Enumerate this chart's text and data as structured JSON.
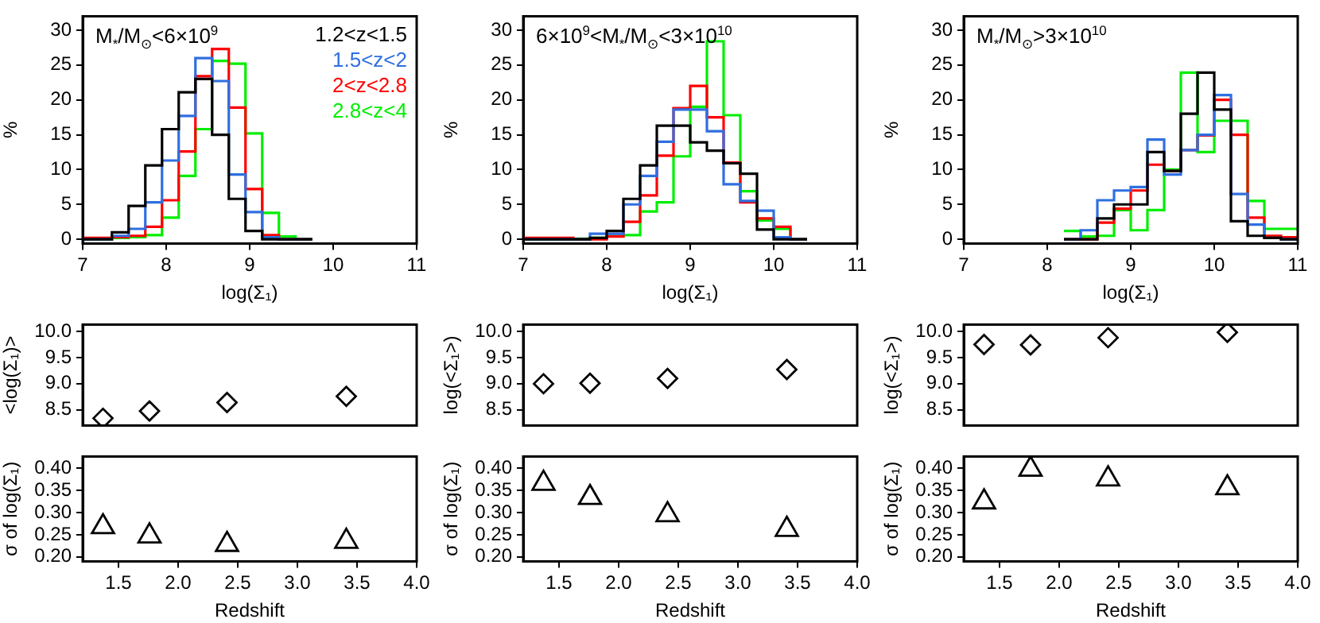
{
  "chart_data": [
    {
      "type": "histogram",
      "title": "M$_{*}$/M$_{⊙}$<6×10$^{9}$",
      "xlabel": "log(Σ₁)",
      "ylabel": "%",
      "bins": [
        6.95,
        7.15,
        7.35,
        7.55,
        7.75,
        7.95,
        8.15,
        8.35,
        8.55,
        8.75,
        8.95,
        9.15,
        9.35,
        9.55,
        9.75
      ],
      "xlim": [
        7,
        11
      ],
      "xticks": [
        7,
        8,
        9,
        10,
        11
      ],
      "ylim": [
        -0.6,
        32
      ],
      "yticks": [
        0,
        5,
        10,
        15,
        20,
        25,
        30
      ],
      "series": [
        {
          "name": "1.2<z<1.5",
          "color": "#000000",
          "values": [
            0,
            0,
            1.0,
            4.8,
            10.6,
            15.8,
            21.1,
            23.0,
            15.0,
            5.8,
            1.2,
            0,
            0,
            0
          ]
        },
        {
          "name": "1.5<z<2",
          "color": "#2f6fe0",
          "values": [
            0,
            0,
            0.5,
            1.5,
            5.3,
            11.3,
            17.7,
            26.0,
            22.7,
            9.3,
            3.9,
            0.3,
            0,
            0
          ]
        },
        {
          "name": "2<z<2.8",
          "color": "#ff0000",
          "values": [
            0.2,
            0.2,
            0.3,
            0.5,
            1.8,
            5.6,
            12.6,
            23.4,
            27.3,
            18.9,
            7.2,
            0.6,
            0,
            0
          ]
        },
        {
          "name": "2.8<z<4",
          "color": "#00ee00",
          "values": [
            0,
            0,
            0.2,
            0.3,
            0.6,
            3.1,
            9.1,
            15.8,
            25.6,
            25.2,
            15.2,
            3.8,
            0.4,
            0
          ]
        }
      ]
    },
    {
      "type": "histogram",
      "title": "6×10$^{9}$<M$_{*}$/M$_{⊙}$<3×10$^{10}$",
      "xlabel": "log(Σ₁)",
      "ylabel": "%",
      "bins": [
        7.0,
        7.2,
        7.4,
        7.6,
        7.8,
        8.0,
        8.2,
        8.4,
        8.6,
        8.8,
        9.0,
        9.2,
        9.4,
        9.6,
        9.8,
        10.0,
        10.2,
        10.4
      ],
      "xlim": [
        7,
        11
      ],
      "xticks": [
        7,
        8,
        9,
        10,
        11
      ],
      "ylim": [
        -0.6,
        32
      ],
      "yticks": [
        0,
        5,
        10,
        15,
        20,
        25,
        30
      ],
      "series": [
        {
          "color": "#000000",
          "values": [
            0,
            0,
            0,
            0,
            0.2,
            1.2,
            5.8,
            10.6,
            16.3,
            16.3,
            13.9,
            12.7,
            10.9,
            9.4,
            1.4,
            0,
            0
          ]
        },
        {
          "color": "#2f6fe0",
          "values": [
            0,
            0,
            0,
            0,
            0.8,
            0.8,
            5.0,
            9.1,
            14.0,
            18.6,
            18.6,
            15.5,
            7.9,
            5.5,
            4.1,
            0.3,
            0
          ]
        },
        {
          "color": "#ff0000",
          "values": [
            0.2,
            0.2,
            0.2,
            0,
            0,
            0.4,
            2.5,
            6.3,
            12.0,
            18.8,
            22.0,
            17.5,
            11.0,
            5.3,
            3.0,
            1.8,
            0
          ]
        },
        {
          "color": "#00ee00",
          "values": [
            0,
            0,
            0,
            0.1,
            0.2,
            0.5,
            0.6,
            4.0,
            5.3,
            11.9,
            19.0,
            28.4,
            17.8,
            6.9,
            2.7,
            1.5,
            0
          ]
        }
      ]
    },
    {
      "type": "histogram",
      "title": "M$_{*}$/M$_{⊙}$>3×10$^{10}$",
      "xlabel": "log(Σ₁)",
      "ylabel": "%",
      "bins": [
        8.2,
        8.4,
        8.6,
        8.8,
        9.0,
        9.2,
        9.4,
        9.6,
        9.8,
        10.0,
        10.2,
        10.4,
        10.6,
        10.8,
        11.0
      ],
      "xlim": [
        7,
        11
      ],
      "xticks": [
        7,
        8,
        9,
        10,
        11
      ],
      "ylim": [
        -0.6,
        32
      ],
      "yticks": [
        0,
        5,
        10,
        15,
        20,
        25,
        30
      ],
      "series": [
        {
          "color": "#000000",
          "values": [
            0,
            0,
            3.0,
            5.0,
            5.0,
            12.5,
            9.8,
            18.0,
            23.9,
            18.6,
            2.6,
            0.5,
            0.2,
            0
          ]
        },
        {
          "color": "#2f6fe0",
          "values": [
            0,
            1.3,
            5.6,
            7.0,
            7.5,
            14.3,
            9.3,
            12.8,
            15.0,
            20.7,
            6.5,
            2.1,
            0.2,
            0
          ]
        },
        {
          "color": "#ff0000",
          "values": [
            0,
            0,
            2.4,
            4.4,
            7.0,
            10.7,
            9.8,
            12.8,
            14.9,
            20.0,
            15.0,
            3.1,
            0.5,
            0.3
          ]
        },
        {
          "color": "#00ee00",
          "values": [
            1.2,
            0.4,
            0.5,
            4.2,
            1.3,
            4.2,
            10.0,
            23.9,
            12.5,
            17.0,
            17.0,
            5.5,
            1.5,
            1.5
          ]
        }
      ]
    },
    {
      "type": "scatter",
      "ylabel": "<log(Σ₁)>",
      "marker": "diamond",
      "tick_labels": "y",
      "x": [
        1.37,
        1.76,
        2.41,
        3.41
      ],
      "xlim": [
        1.2,
        4.0
      ],
      "ylim": [
        8.2,
        10.13
      ],
      "yticks": [
        8.5,
        {
          "value": 9,
          "label": "9.0"
        },
        9.5,
        {
          "value": 10,
          "label": "10.0"
        }
      ],
      "series": [
        {
          "color": "#000000",
          "values": [
            8.34,
            8.48,
            8.64,
            8.76
          ]
        }
      ]
    },
    {
      "type": "scatter",
      "xlabel": "Redshift",
      "ylabel": "σ of log(Σ₁)",
      "marker": "triangle",
      "x": [
        1.37,
        1.76,
        2.41,
        3.41
      ],
      "xlim": [
        1.2,
        4.0
      ],
      "xticks": [
        1.5,
        {
          "value": 2,
          "label": "2.0"
        },
        2.5,
        {
          "value": 3,
          "label": "3.0"
        },
        3.5,
        {
          "value": 4,
          "label": "4.0"
        }
      ],
      "ylim": [
        0.19,
        0.427
      ],
      "yticks": [
        {
          "value": 0.2,
          "label": "0.20"
        },
        0.25,
        {
          "value": 0.3,
          "label": "0.30"
        },
        0.35,
        {
          "value": 0.4,
          "label": "0.40"
        }
      ],
      "series": [
        {
          "color": "#000000",
          "values": [
            0.268,
            0.247,
            0.228,
            0.235
          ]
        }
      ]
    },
    {
      "type": "scatter",
      "ylabel": "log(<Σ₁>)",
      "marker": "diamond",
      "tick_labels": "y",
      "x": [
        1.37,
        1.76,
        2.41,
        3.41
      ],
      "xlim": [
        1.2,
        4.0
      ],
      "ylim": [
        8.2,
        10.13
      ],
      "yticks": [
        8.5,
        {
          "value": 9,
          "label": "9.0"
        },
        9.5,
        {
          "value": 10,
          "label": "10.0"
        }
      ],
      "series": [
        {
          "color": "#000000",
          "values": [
            9.0,
            9.01,
            9.1,
            9.27
          ]
        }
      ]
    },
    {
      "type": "scatter",
      "xlabel": "Redshift",
      "ylabel": "σ of log(Σ₁)",
      "marker": "triangle",
      "x": [
        1.37,
        1.76,
        2.41,
        3.41
      ],
      "xlim": [
        1.2,
        4.0
      ],
      "xticks": [
        1.5,
        {
          "value": 2,
          "label": "2.0"
        },
        2.5,
        {
          "value": 3,
          "label": "3.0"
        },
        3.5,
        {
          "value": 4,
          "label": "4.0"
        }
      ],
      "ylim": [
        0.19,
        0.427
      ],
      "yticks": [
        {
          "value": 0.2,
          "label": "0.20"
        },
        0.25,
        {
          "value": 0.3,
          "label": "0.30"
        },
        0.35,
        {
          "value": 0.4,
          "label": "0.40"
        }
      ],
      "series": [
        {
          "color": "#000000",
          "values": [
            0.366,
            0.334,
            0.295,
            0.262
          ]
        }
      ]
    },
    {
      "type": "scatter",
      "ylabel": "log(<Σ₁>)",
      "marker": "diamond",
      "tick_labels": "y",
      "x": [
        1.37,
        1.76,
        2.41,
        3.41
      ],
      "xlim": [
        1.2,
        4.0
      ],
      "ylim": [
        8.2,
        10.13
      ],
      "yticks": [
        8.5,
        {
          "value": 9,
          "label": "9.0"
        },
        9.5,
        {
          "value": 10,
          "label": "10.0"
        }
      ],
      "series": [
        {
          "color": "#000000",
          "values": [
            9.75,
            9.74,
            9.88,
            9.98
          ]
        }
      ]
    },
    {
      "type": "scatter",
      "xlabel": "Redshift",
      "ylabel": "σ of log(Σ₁)",
      "marker": "triangle",
      "x": [
        1.37,
        1.76,
        2.41,
        3.41
      ],
      "xlim": [
        1.2,
        4.0
      ],
      "xticks": [
        1.5,
        {
          "value": 2,
          "label": "2.0"
        },
        2.5,
        {
          "value": 3,
          "label": "3.0"
        },
        3.5,
        {
          "value": 4,
          "label": "4.0"
        }
      ],
      "ylim": [
        0.19,
        0.427
      ],
      "yticks": [
        {
          "value": 0.2,
          "label": "0.20"
        },
        0.25,
        {
          "value": 0.3,
          "label": "0.30"
        },
        0.35,
        {
          "value": 0.4,
          "label": "0.40"
        }
      ],
      "series": [
        {
          "color": "#000000",
          "values": [
            0.324,
            0.398,
            0.376,
            0.356
          ]
        }
      ]
    }
  ]
}
